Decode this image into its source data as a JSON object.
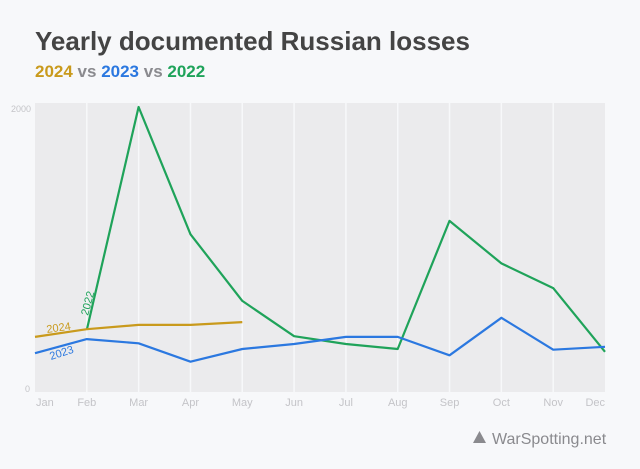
{
  "chart_data": {
    "type": "line",
    "title": "Yearly documented Russian losses",
    "subtitle": [
      {
        "text": "2024",
        "color": "#c99a1c"
      },
      {
        "text": " vs ",
        "color": "#8a8a8e"
      },
      {
        "text": "2023",
        "color": "#2b78e0"
      },
      {
        "text": " vs ",
        "color": "#8a8a8e"
      },
      {
        "text": "2022",
        "color": "#1fa35a"
      }
    ],
    "categories": [
      "Jan",
      "Feb",
      "Mar",
      "Apr",
      "May",
      "Jun",
      "Jul",
      "Aug",
      "Sep",
      "Oct",
      "Nov",
      "Dec"
    ],
    "yticks": [
      "0",
      "2000"
    ],
    "ylim": [
      0,
      2000
    ],
    "grid": "vertical",
    "series": [
      {
        "name": "2022",
        "color": "#1fa35a",
        "values": [
          null,
          425,
          2000,
          1100,
          630,
          380,
          325,
          290,
          1195,
          895,
          720,
          270
        ]
      },
      {
        "name": "2023",
        "color": "#2b78e0",
        "values": [
          260,
          360,
          330,
          200,
          290,
          325,
          375,
          375,
          245,
          510,
          285,
          305
        ]
      },
      {
        "name": "2024",
        "color": "#c99a1c",
        "values": [
          375,
          430,
          460,
          460,
          480,
          null,
          null,
          null,
          null,
          null,
          null,
          null
        ]
      }
    ],
    "source": "WarSpotting.net"
  }
}
